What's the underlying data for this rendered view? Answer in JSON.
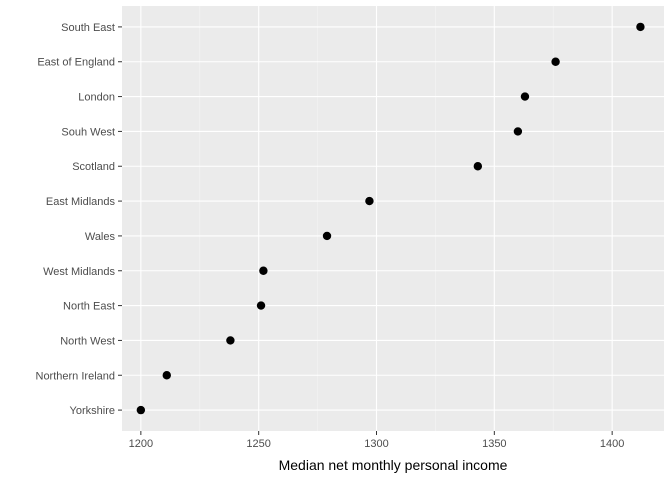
{
  "colors": {
    "panel_background": "#ebebeb",
    "grid_major": "#ffffff",
    "grid_minor": "#f5f5f5",
    "point": "#000000",
    "tick_text": "#4d4d4d",
    "tick_mark": "#333333"
  },
  "chart_data": {
    "type": "scatter",
    "orientation": "horizontal-dot",
    "title": "",
    "xlabel": "Median net monthly personal income",
    "ylabel": "",
    "xlim": [
      1192,
      1422
    ],
    "x_ticks": [
      1200,
      1250,
      1300,
      1350,
      1400
    ],
    "x_tick_labels": [
      "1200",
      "1250",
      "1300",
      "1350",
      "1400"
    ],
    "grid": true,
    "legend": "none",
    "categories": [
      "South East",
      "East of England",
      "London",
      "Souh West",
      "Scotland",
      "East Midlands",
      "Wales",
      "West Midlands",
      "North East",
      "North West",
      "Northern Ireland",
      "Yorkshire"
    ],
    "values": [
      1412,
      1376,
      1363,
      1360,
      1343,
      1297,
      1279,
      1252,
      1251,
      1238,
      1211,
      1200
    ]
  }
}
